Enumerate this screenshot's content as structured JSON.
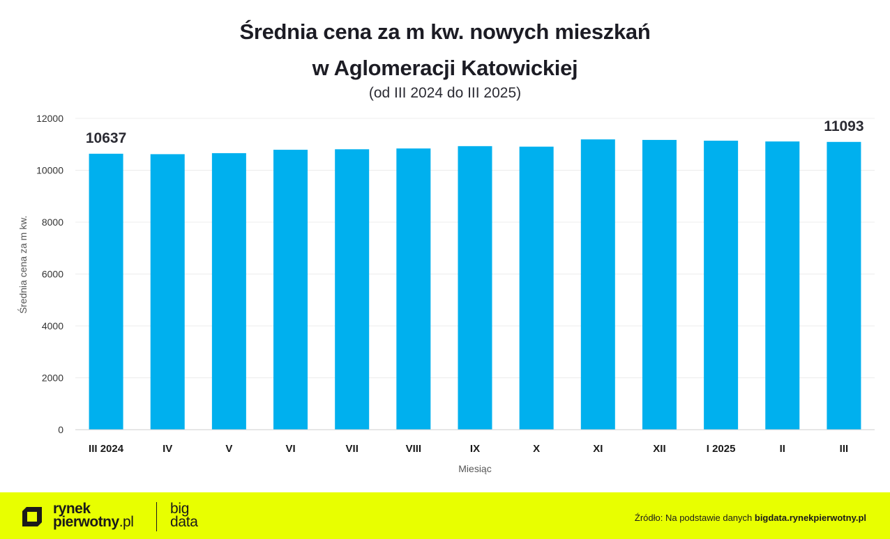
{
  "header": {
    "title_line1": "Średnia cena za m kw. nowych mieszkań",
    "title_line2": "w Aglomeracji Katowickiej",
    "subtitle": "(od III 2024 do III 2025)"
  },
  "chart_data": {
    "type": "bar",
    "categories": [
      "III 2024",
      "IV",
      "V",
      "VI",
      "VII",
      "VIII",
      "IX",
      "X",
      "XI",
      "XII",
      "I 2025",
      "II",
      "III"
    ],
    "values": [
      10637,
      10620,
      10660,
      10790,
      10810,
      10840,
      10930,
      10910,
      11190,
      11170,
      11140,
      11110,
      11093
    ],
    "data_labels": [
      {
        "category": "III 2024",
        "text": "10637"
      },
      {
        "category": "III",
        "text": "11093"
      }
    ],
    "xlabel": "Miesiąc",
    "ylabel": "Średnia cena za m kw.",
    "ylim": [
      0,
      12000
    ],
    "yticks": [
      0,
      2000,
      4000,
      6000,
      8000,
      10000,
      12000
    ],
    "grid": true,
    "bar_color": "#00b0ee"
  },
  "footer": {
    "logo_line1": "rynek",
    "logo_line2": "pierwotny",
    "logo_suffix": ".pl",
    "brand_line1": "big",
    "brand_line2": "data",
    "source_prefix": "Źródło: Na podstawie danych ",
    "source_link": "bigdata.rynekpierwotny.pl",
    "background_color": "#e8ff00"
  }
}
